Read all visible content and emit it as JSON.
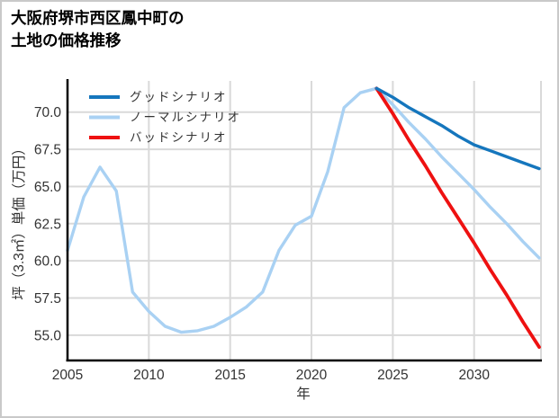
{
  "window": {
    "title_line1": "大阪府堺市西区鳳中町の",
    "title_line2": "土地の価格推移"
  },
  "chart_data": {
    "type": "line",
    "title": "大阪府堺市西区鳳中町の土地の価格推移",
    "xlabel": "年",
    "ylabel": "坪（3.3㎡）単価（万円）",
    "x_tick_labels": [
      "2005",
      "2010",
      "2015",
      "2020",
      "2025",
      "2030"
    ],
    "x_tick_years": [
      2005,
      2010,
      2015,
      2020,
      2025,
      2030
    ],
    "y_tick_labels": [
      "55.0",
      "57.5",
      "60.0",
      "62.5",
      "65.0",
      "67.5",
      "70.0"
    ],
    "y_tick_values": [
      55.0,
      57.5,
      60.0,
      62.5,
      65.0,
      67.5,
      70.0
    ],
    "xlim": [
      2005,
      2034
    ],
    "ylim": [
      53.3,
      72.1
    ],
    "grid": true,
    "legend_position": "top-left",
    "colors": {
      "good": "#1576bd",
      "normal": "#a9d1f3",
      "bad": "#ee1111",
      "grid": "#d9d9d9",
      "axis": "#000000",
      "tick_text": "#333333"
    },
    "series": [
      {
        "id": "good",
        "name": "グッドシナリオ",
        "color": "#1576bd",
        "width": 3.4,
        "x": [
          2024,
          2025,
          2026,
          2027,
          2028,
          2029,
          2030,
          2031,
          2032,
          2033,
          2034
        ],
        "values": [
          71.6,
          71.0,
          70.3,
          69.7,
          69.1,
          68.4,
          67.8,
          67.4,
          67.0,
          66.6,
          66.2
        ]
      },
      {
        "id": "normal",
        "name": "ノーマルシナリオ",
        "color": "#a9d1f3",
        "width": 3.4,
        "x": [
          2005,
          2006,
          2007,
          2008,
          2009,
          2010,
          2011,
          2012,
          2013,
          2014,
          2015,
          2016,
          2017,
          2018,
          2019,
          2020,
          2021,
          2022,
          2023,
          2024,
          2025,
          2026,
          2027,
          2028,
          2029,
          2030,
          2031,
          2032,
          2033,
          2034
        ],
        "values": [
          60.7,
          64.3,
          66.3,
          64.7,
          57.9,
          56.6,
          55.6,
          55.2,
          55.3,
          55.6,
          56.2,
          56.9,
          57.9,
          60.7,
          62.4,
          63.0,
          66.0,
          70.3,
          71.3,
          71.6,
          70.5,
          69.3,
          68.2,
          67.0,
          65.9,
          64.8,
          63.6,
          62.5,
          61.3,
          60.2
        ]
      },
      {
        "id": "bad",
        "name": "バッドシナリオ",
        "color": "#ee1111",
        "width": 3.8,
        "x": [
          2024,
          2025,
          2026,
          2027,
          2028,
          2029,
          2030,
          2031,
          2032,
          2033,
          2034
        ],
        "values": [
          71.6,
          69.9,
          68.1,
          66.4,
          64.6,
          62.9,
          61.2,
          59.4,
          57.7,
          55.9,
          54.2
        ]
      }
    ],
    "legend_entries": [
      "グッドシナリオ",
      "ノーマルシナリオ",
      "バッドシナリオ"
    ]
  }
}
